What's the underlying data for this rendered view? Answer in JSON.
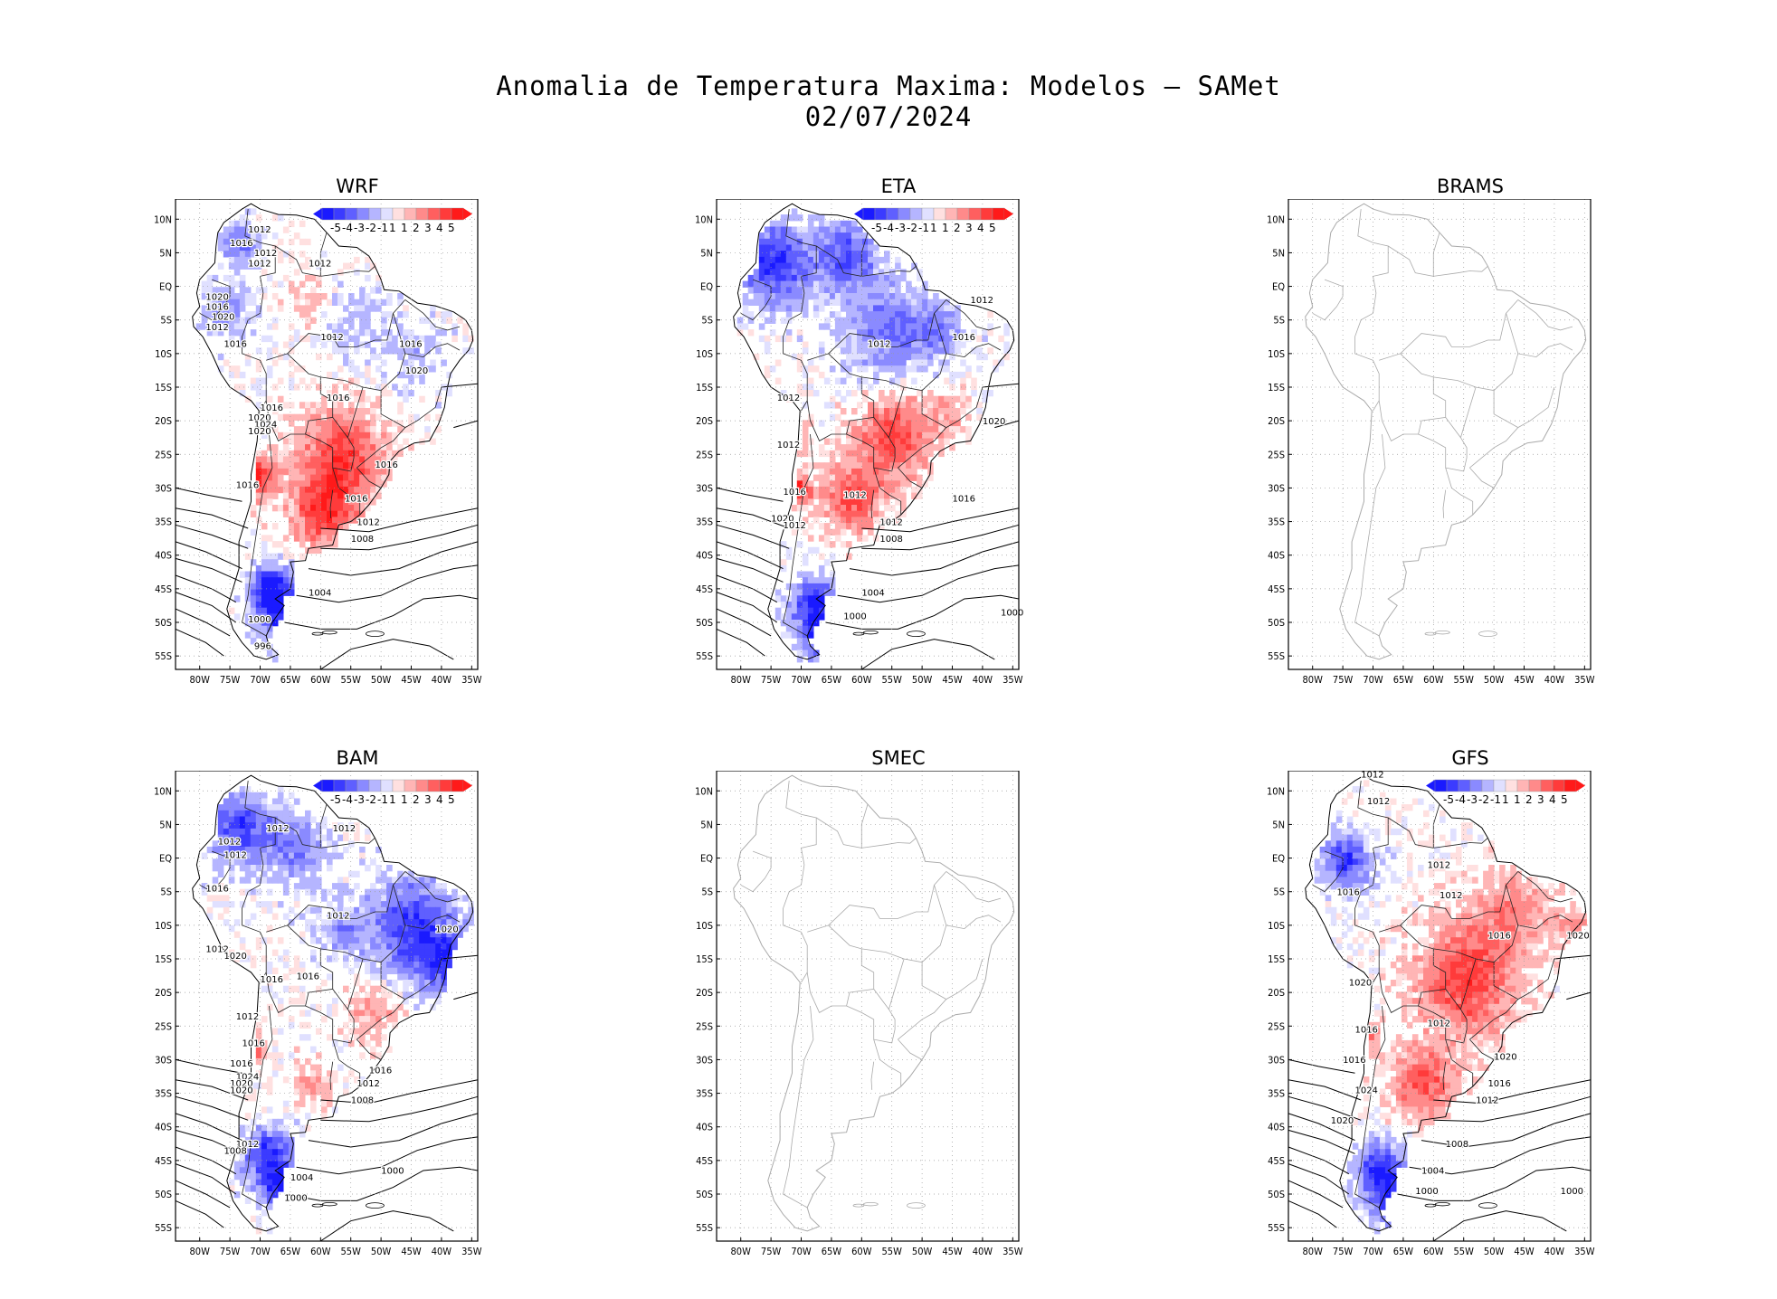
{
  "figure": {
    "title": "Anomalia de Temperatura Maxima: Modelos — SAMet",
    "date": "02/07/2024"
  },
  "axes": {
    "lat_labels": [
      "10N",
      "5N",
      "EQ",
      "5S",
      "10S",
      "15S",
      "20S",
      "25S",
      "30S",
      "35S",
      "40S",
      "45S",
      "50S",
      "55S"
    ],
    "lon_labels": [
      "80W",
      "75W",
      "70W",
      "65W",
      "60W",
      "55W",
      "50W",
      "45W",
      "40W",
      "35W"
    ]
  },
  "colorbar": {
    "labels": [
      "-5",
      "-4",
      "-3",
      "-2",
      "-1",
      "1",
      "1",
      "2",
      "3",
      "4",
      "5"
    ],
    "colors": [
      "#1a1aff",
      "#3b3bff",
      "#5f5fff",
      "#8a8aff",
      "#b5b5ff",
      "#e0e0ff",
      "#ffe0e0",
      "#ffb5b5",
      "#ff8a8a",
      "#ff5f5f",
      "#ff3b3b",
      "#ff1a1a"
    ]
  },
  "colors": {
    "cold": "#2a2ae0",
    "warm": "#e03030",
    "coast_gray": "#aaaaaa",
    "isobar": "#000000"
  },
  "panels": [
    {
      "name": "WRF",
      "has_data": true,
      "isobar_labels": [
        "1012",
        "1016",
        "1012",
        "1012",
        "1012",
        "1020",
        "1016",
        "1020",
        "1012",
        "1016",
        "1012",
        "1016",
        "1020",
        "1016",
        "1016",
        "1020",
        "1024",
        "1020",
        "1016",
        "1016",
        "1016",
        "1012",
        "1008",
        "1004",
        "1000",
        "996"
      ]
    },
    {
      "name": "ETA",
      "has_data": true,
      "isobar_labels": [
        "1012",
        "1012",
        "1016",
        "1012",
        "1020",
        "1012",
        "1016",
        "1012",
        "1016",
        "1020",
        "1012",
        "1012",
        "1008",
        "1004",
        "1000",
        "1000"
      ]
    },
    {
      "name": "BRAMS",
      "has_data": false,
      "isobar_labels": []
    },
    {
      "name": "BAM",
      "has_data": true,
      "isobar_labels": [
        "1012",
        "1012",
        "1012",
        "1012",
        "1016",
        "1012",
        "1020",
        "1012",
        "1020",
        "1016",
        "1016",
        "1012",
        "1016",
        "1016",
        "1024",
        "1020",
        "1020",
        "1016",
        "1012",
        "1008",
        "1012",
        "1008",
        "1004",
        "1000",
        "1000"
      ]
    },
    {
      "name": "SMEC",
      "has_data": false,
      "isobar_labels": []
    },
    {
      "name": "GFS",
      "has_data": true,
      "isobar_labels": [
        "1012",
        "1012",
        "1016",
        "1012",
        "1012",
        "1016",
        "1020",
        "1020",
        "1012",
        "1016",
        "1016",
        "1020",
        "1016",
        "1024",
        "1012",
        "1020",
        "1008",
        "1004",
        "1000",
        "1000"
      ]
    }
  ]
}
